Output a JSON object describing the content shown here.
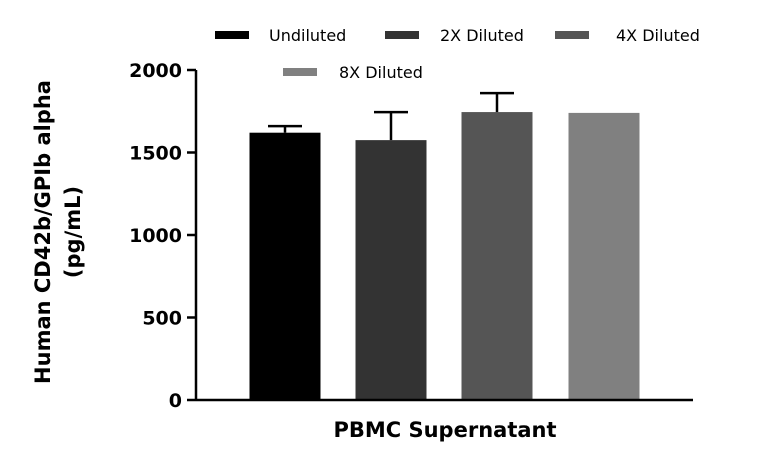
{
  "chart_data": {
    "type": "bar",
    "title": "",
    "categories": [
      "PBMC Supernatant"
    ],
    "xlabel": "PBMC Supernatant",
    "ylabel_line1": "Human CD42b/GPIb alpha",
    "ylabel_line2": "(pg/mL)",
    "ylim": [
      0,
      2000
    ],
    "yticks": [
      0,
      500,
      1000,
      1500,
      2000
    ],
    "grid": false,
    "legend_position": "top",
    "series": [
      {
        "name": "Undiluted",
        "values": [
          1620
        ],
        "error": [
          40
        ],
        "color": "#000000"
      },
      {
        "name": "2X Diluted",
        "values": [
          1575
        ],
        "error": [
          170
        ],
        "color": "#333333"
      },
      {
        "name": "4X Diluted",
        "values": [
          1745
        ],
        "error": [
          115
        ],
        "color": "#555555"
      },
      {
        "name": "8X Diluted",
        "values": [
          1740
        ],
        "error": [
          0
        ],
        "color": "#808080"
      }
    ]
  }
}
